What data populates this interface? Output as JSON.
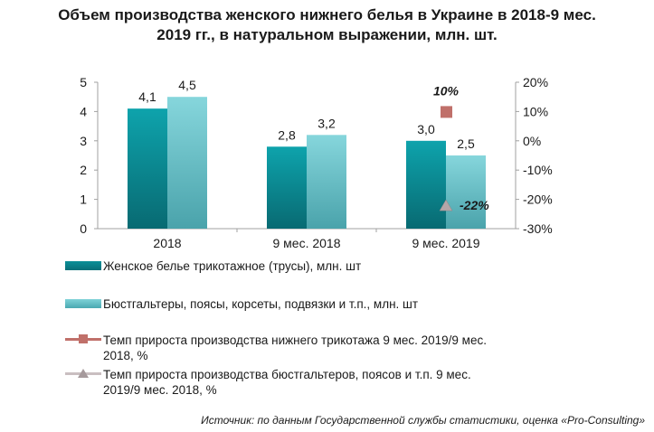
{
  "title": {
    "line1": "Объем производства женского нижнего белья в Украине в 2018-9 мес.",
    "line2": "2019 гг., в натуральном выражении, млн. шт."
  },
  "chart_data": {
    "type": "bar",
    "categories": [
      "2018",
      "9 мес. 2018",
      "9 мес. 2019"
    ],
    "series": [
      {
        "name": "Женское белье трикотажное (трусы), млн. шт",
        "type": "bar",
        "axis": "left",
        "values": [
          4.1,
          2.8,
          3.0
        ],
        "labels": [
          "4,1",
          "2,8",
          "3,0"
        ],
        "color": "#0b8f98"
      },
      {
        "name": "Бюстгальтеры, поясы, корсеты, подвязки и т.п., млн. шт",
        "type": "bar",
        "axis": "left",
        "values": [
          4.5,
          3.2,
          2.5
        ],
        "labels": [
          "4,5",
          "3,2",
          "2,5"
        ],
        "color": "#6cc6cd"
      },
      {
        "name": "Темп прироста производства нижнего трикотажа 9 мес. 2019/9 мес. 2018, %",
        "type": "marker",
        "marker": "square",
        "axis": "right",
        "values": [
          null,
          null,
          10
        ],
        "labels": [
          null,
          null,
          "10%"
        ],
        "color": "#c0706a"
      },
      {
        "name": "Темп прироста производства бюстгальтеров, поясов и т.п. 9 мес. 2019/9 мес. 2018, %",
        "type": "marker",
        "marker": "triangle",
        "axis": "right",
        "values": [
          null,
          null,
          -22
        ],
        "labels": [
          null,
          null,
          "-22%"
        ],
        "color": "#b5a6a8"
      }
    ],
    "ylim": [
      0,
      5
    ],
    "y_ticks": [
      "0",
      "1",
      "2",
      "3",
      "4",
      "5"
    ],
    "y2lim": [
      -30,
      20
    ],
    "y2_ticks": [
      "-30%",
      "-20%",
      "-10%",
      "0%",
      "10%",
      "20%"
    ],
    "grid": false,
    "legend_position": "bottom"
  },
  "legend": [
    {
      "label": "Женское белье трикотажное (трусы), млн. шт"
    },
    {
      "label": "Бюстгальтеры, поясы, корсеты, подвязки и т.п., млн. шт"
    },
    {
      "label_line1": "Темп прироста производства нижнего трикотажа 9 мес. 2019/9 мес.",
      "label_line2": "2018, %"
    },
    {
      "label_line1": "Темп прироста производства бюстгальтеров, поясов и т.п. 9 мес.",
      "label_line2": "2019/9 мес. 2018, %"
    }
  ],
  "source": "Источник: по данным Государственной службы статистики, оценка «Pro-Consulting»",
  "colors": {
    "bar1": "#0b8f98",
    "bar2": "#6cc6cd",
    "marker1": "#c0706a",
    "marker2": "#b5a6a8",
    "axis": "#a0a0a0"
  }
}
